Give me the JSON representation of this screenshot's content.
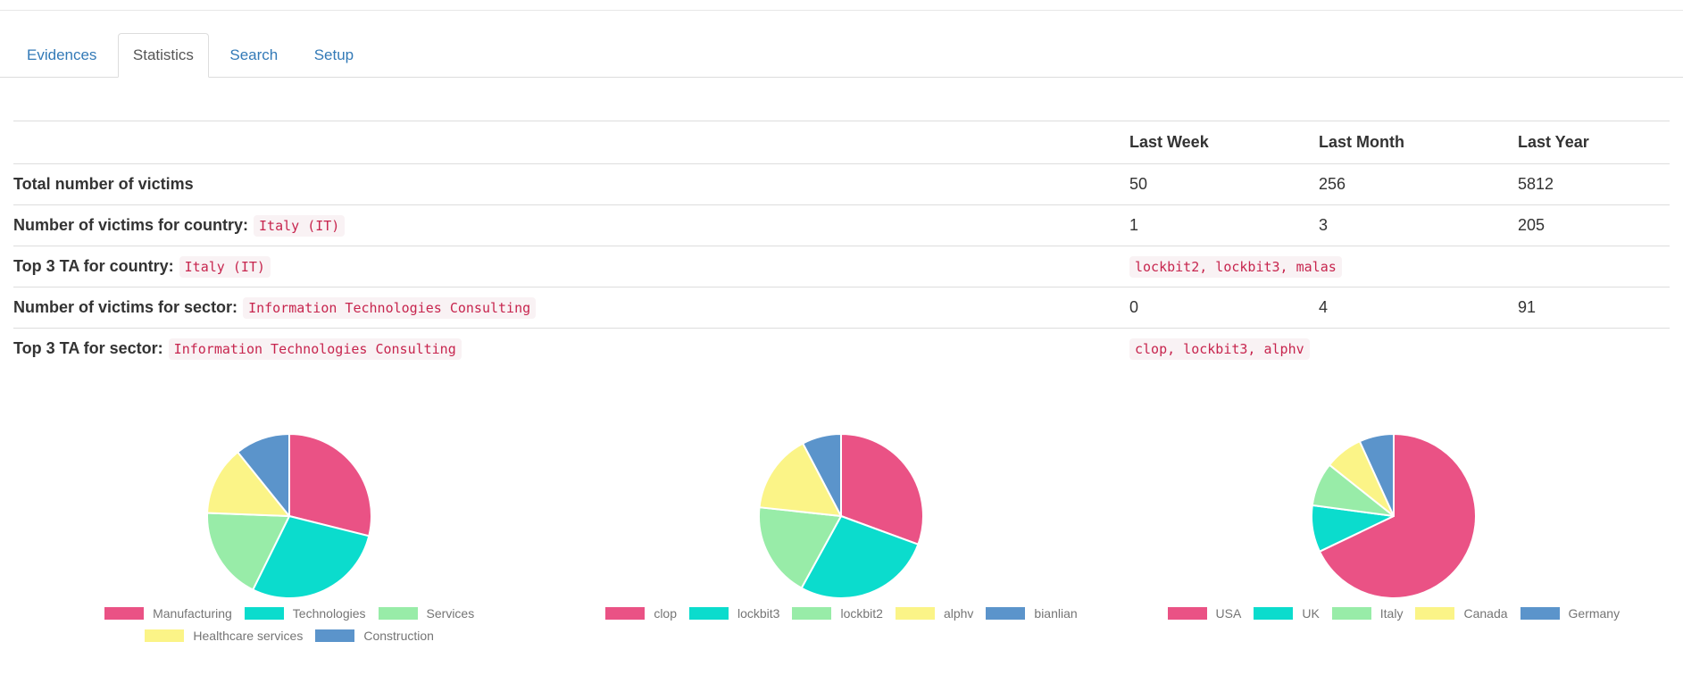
{
  "tabs": {
    "items": [
      {
        "label": "Evidences",
        "active": false
      },
      {
        "label": "Statistics",
        "active": true
      },
      {
        "label": "Search",
        "active": false
      },
      {
        "label": "Setup",
        "active": false
      }
    ]
  },
  "table": {
    "columns": [
      "",
      "Last Week",
      "Last Month",
      "Last Year"
    ],
    "rows": [
      {
        "label": "Total number of victims",
        "code": "",
        "cells": [
          {
            "type": "text",
            "text": "50"
          },
          {
            "type": "text",
            "text": "256"
          },
          {
            "type": "text",
            "text": "5812"
          }
        ]
      },
      {
        "label": "Number of victims for country:",
        "code": "Italy (IT)",
        "cells": [
          {
            "type": "text",
            "text": "1"
          },
          {
            "type": "text",
            "text": "3"
          },
          {
            "type": "text",
            "text": "205"
          }
        ]
      },
      {
        "label": "Top 3 TA for country:",
        "code": "Italy (IT)",
        "cells": [
          {
            "type": "code",
            "text": "lockbit2, lockbit3, malas"
          },
          {
            "type": "text",
            "text": ""
          },
          {
            "type": "text",
            "text": ""
          }
        ]
      },
      {
        "label": "Number of victims for sector:",
        "code": "Information Technologies Consulting",
        "cells": [
          {
            "type": "text",
            "text": "0"
          },
          {
            "type": "text",
            "text": "4"
          },
          {
            "type": "text",
            "text": "91"
          }
        ]
      },
      {
        "label": "Top 3 TA for sector:",
        "code": "Information Technologies Consulting",
        "cells": [
          {
            "type": "code",
            "text": "clop, lockbit3, alphv"
          },
          {
            "type": "text",
            "text": ""
          },
          {
            "type": "text",
            "text": ""
          }
        ]
      }
    ]
  },
  "palette": [
    "#ea5285",
    "#0bdccd",
    "#98eca8",
    "#fbf487",
    "#5b94cb"
  ],
  "chart_data": [
    {
      "type": "pie",
      "name": "victims-by-sector",
      "labels": [
        "Manufacturing",
        "Technologies",
        "Services",
        "Healthcare services",
        "Construction"
      ],
      "values": [
        28.9,
        28.4,
        18.3,
        13.6,
        10.8
      ],
      "colors": [
        "#ea5285",
        "#0bdccd",
        "#98eca8",
        "#fbf487",
        "#5b94cb"
      ],
      "legend_position": "bottom"
    },
    {
      "type": "pie",
      "name": "victims-by-threat-actor",
      "labels": [
        "clop",
        "lockbit3",
        "lockbit2",
        "alphv",
        "bianlian"
      ],
      "values": [
        30.6,
        27.4,
        18.7,
        15.6,
        7.7
      ],
      "colors": [
        "#ea5285",
        "#0bdccd",
        "#98eca8",
        "#fbf487",
        "#5b94cb"
      ],
      "legend_position": "bottom"
    },
    {
      "type": "pie",
      "name": "victims-by-country",
      "labels": [
        "USA",
        "UK",
        "Italy",
        "Canada",
        "Germany"
      ],
      "values": [
        67.9,
        9.2,
        8.6,
        7.5,
        6.8
      ],
      "colors": [
        "#ea5285",
        "#0bdccd",
        "#98eca8",
        "#fbf487",
        "#5b94cb"
      ],
      "legend_position": "bottom"
    }
  ],
  "ui_colors": {
    "link_blue": "#337ab7",
    "active_tab_text": "#555555",
    "code_text": "#c7254e",
    "code_background": "#f9f2f4",
    "border": "#dddddd",
    "legend_text": "#757575"
  }
}
